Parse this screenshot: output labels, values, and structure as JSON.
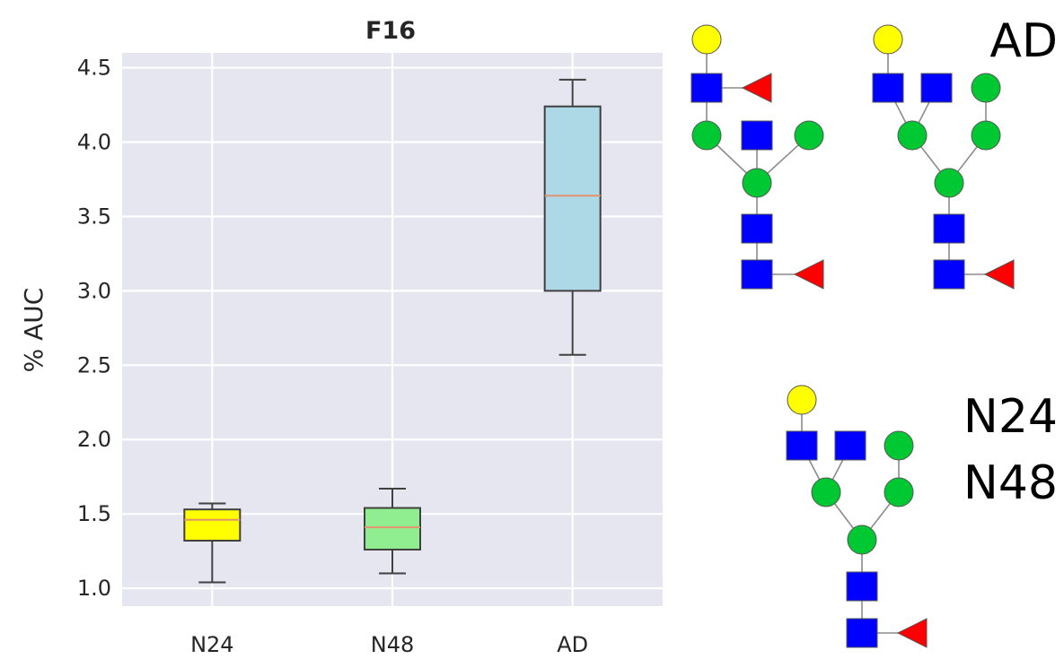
{
  "chart_data": {
    "type": "box",
    "title": "F16",
    "xlabel": "",
    "ylabel": "% AUC",
    "ylim": [
      0.88,
      4.6
    ],
    "yticks": [
      "1.0",
      "1.5",
      "2.0",
      "2.5",
      "3.0",
      "3.5",
      "4.0",
      "4.5"
    ],
    "categories": [
      "N24",
      "N48",
      "AD"
    ],
    "grid": true,
    "series": [
      {
        "category": "N24",
        "color": "#ffff00",
        "min": 1.04,
        "q1": 1.32,
        "median": 1.46,
        "q3": 1.53,
        "max": 1.57
      },
      {
        "category": "N48",
        "color": "#90ee90",
        "min": 1.1,
        "q1": 1.26,
        "median": 1.41,
        "q3": 1.54,
        "max": 1.67
      },
      {
        "category": "AD",
        "color": "#add8e6",
        "min": 2.57,
        "q1": 3.0,
        "median": 3.64,
        "q3": 4.24,
        "max": 4.42
      }
    ],
    "colors": {
      "plot_background": "#e5e6f0",
      "grid": "#ffffff",
      "median_line": "#e4936f",
      "whisker": "#404040"
    }
  },
  "glycan_legend": {
    "labels": {
      "ad": "AD",
      "n24": "N24",
      "n48": "N48"
    },
    "symbol_colors": {
      "galactose": "#ffff00",
      "glcnac": "#0000ff",
      "mannose": "#00c832",
      "fucose": "#ff0000"
    }
  }
}
